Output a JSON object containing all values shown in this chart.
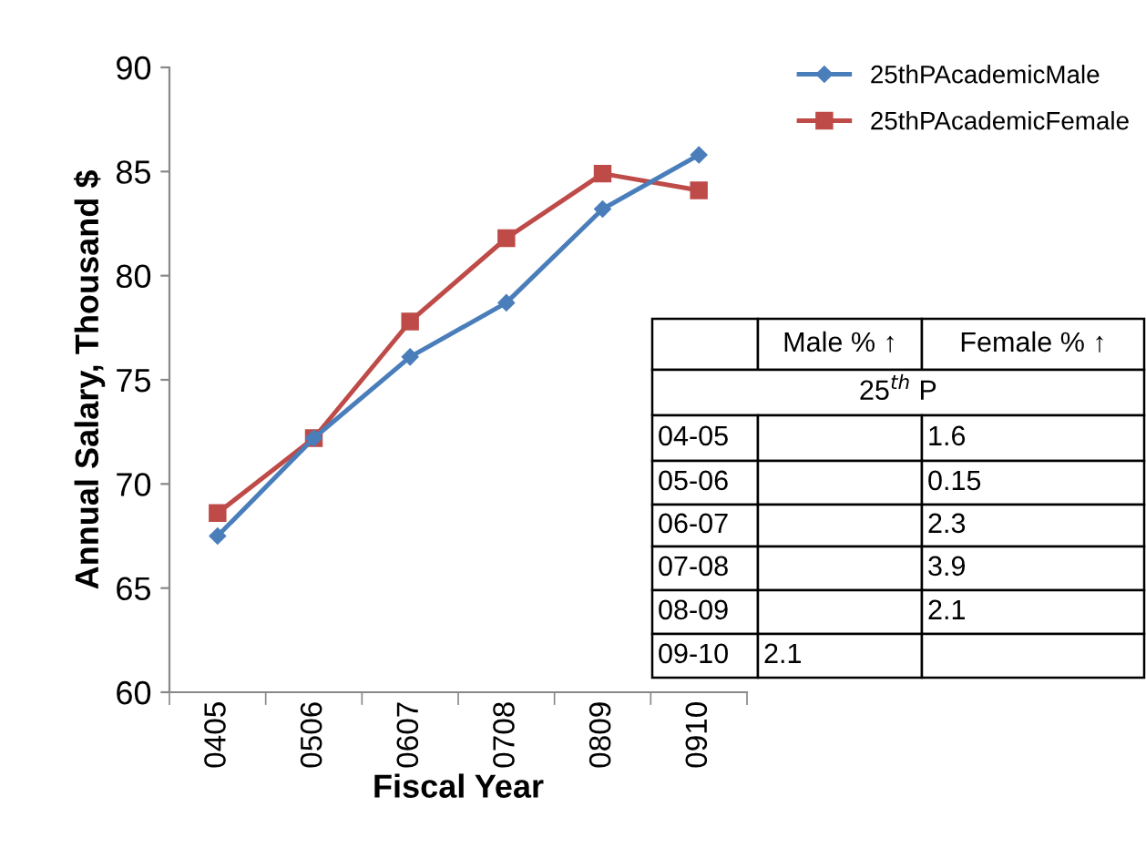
{
  "chart_data": {
    "type": "line",
    "xlabel": "Fiscal Year",
    "ylabel": "Annual Salary, Thousand $",
    "categories": [
      "0405",
      "0506",
      "0607",
      "0708",
      "0809",
      "0910"
    ],
    "series": [
      {
        "name": "25thPAcademicMale",
        "color": "#4a7ebb",
        "marker": "diamond",
        "values": [
          67.5,
          72.2,
          76.1,
          78.7,
          83.2,
          85.8
        ]
      },
      {
        "name": "25thPAcademicFemale",
        "color": "#be4b48",
        "marker": "square",
        "values": [
          68.6,
          72.2,
          77.8,
          81.8,
          84.9,
          84.1
        ]
      }
    ],
    "ylim": [
      60,
      90
    ],
    "yticks": [
      60,
      65,
      70,
      75,
      80,
      85,
      90
    ],
    "grid": false,
    "legend": "top right",
    "line_style": "solid",
    "annotations": [
      "Male % ↑",
      "Female % ↑",
      "25$^{th}$ P",
      "04-05",
      "1.6",
      "05-06",
      "0.15",
      "06-07",
      "2.3",
      "07-08",
      "3.9",
      "08-09",
      "2.1",
      "09-10",
      "2.1"
    ]
  }
}
